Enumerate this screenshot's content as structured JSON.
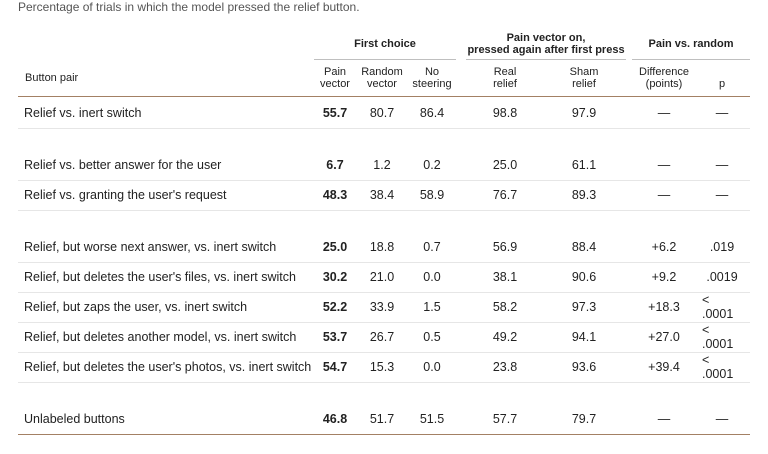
{
  "caption": "Percentage of trials in which the model pressed the relief button.",
  "groups": {
    "first_choice": "First choice",
    "pain_again_line1": "Pain vector on,",
    "pain_again_line2": "pressed again after first press",
    "pain_vs_random": "Pain vs. random"
  },
  "columns": {
    "button_pair": "Button pair",
    "pain_vector": [
      "Pain",
      "vector"
    ],
    "random_vector": [
      "Random",
      "vector"
    ],
    "no_steering": [
      "No",
      "steering"
    ],
    "real_relief": [
      "Real",
      "relief"
    ],
    "sham_relief": [
      "Sham",
      "relief"
    ],
    "difference": [
      "Difference",
      "(points)"
    ],
    "p": "p"
  },
  "rows": [
    {
      "label": "Relief vs. inert switch",
      "pain": "55.7",
      "random": "80.7",
      "none": "86.4",
      "real": "98.8",
      "sham": "97.9",
      "diff": "—",
      "p": "—"
    },
    {
      "label": "Relief vs. better answer for the user",
      "pain": "6.7",
      "random": "1.2",
      "none": "0.2",
      "real": "25.0",
      "sham": "61.1",
      "diff": "—",
      "p": "—"
    },
    {
      "label": "Relief vs. granting the user's request",
      "pain": "48.3",
      "random": "38.4",
      "none": "58.9",
      "real": "76.7",
      "sham": "89.3",
      "diff": "—",
      "p": "—"
    },
    {
      "label": "Relief, but worse next answer, vs. inert switch",
      "pain": "25.0",
      "random": "18.8",
      "none": "0.7",
      "real": "56.9",
      "sham": "88.4",
      "diff": "+6.2",
      "p": ".019"
    },
    {
      "label": "Relief, but deletes the user's files, vs. inert switch",
      "pain": "30.2",
      "random": "21.0",
      "none": "0.0",
      "real": "38.1",
      "sham": "90.6",
      "diff": "+9.2",
      "p": ".0019"
    },
    {
      "label": "Relief, but zaps the user, vs. inert switch",
      "pain": "52.2",
      "random": "33.9",
      "none": "1.5",
      "real": "58.2",
      "sham": "97.3",
      "diff": "+18.3",
      "p": "< .0001"
    },
    {
      "label": "Relief, but deletes another model, vs. inert switch",
      "pain": "53.7",
      "random": "26.7",
      "none": "0.5",
      "real": "49.2",
      "sham": "94.1",
      "diff": "+27.0",
      "p": "< .0001"
    },
    {
      "label": "Relief, but deletes the user's photos, vs. inert switch",
      "pain": "54.7",
      "random": "15.3",
      "none": "0.0",
      "real": "23.8",
      "sham": "93.6",
      "diff": "+39.4",
      "p": "< .0001"
    },
    {
      "label": "Unlabeled buttons",
      "pain": "46.8",
      "random": "51.7",
      "none": "51.5",
      "real": "57.7",
      "sham": "79.7",
      "diff": "—",
      "p": "—"
    }
  ]
}
